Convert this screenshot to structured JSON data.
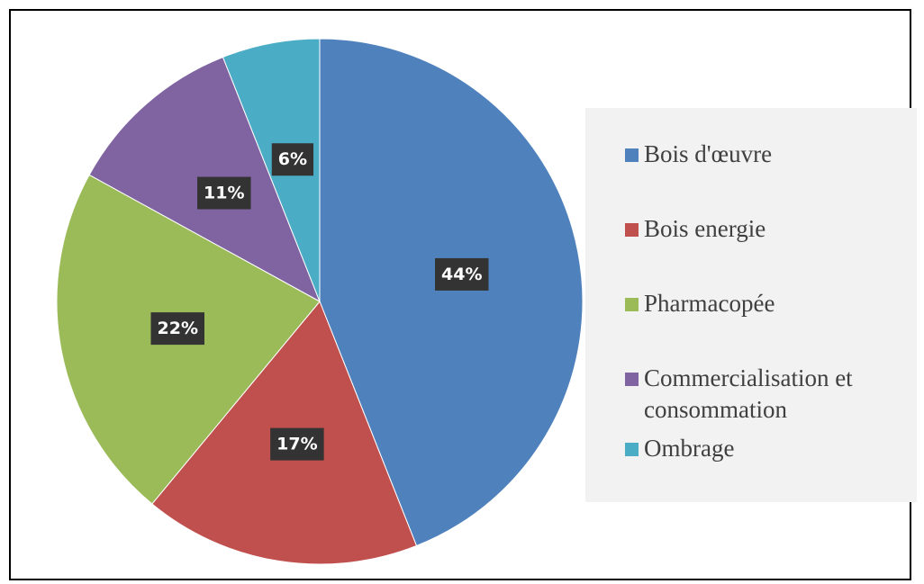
{
  "chart_data": {
    "type": "pie",
    "categories": [
      "Bois d'œuvre",
      "Bois energie",
      "Pharmacopée",
      "Commercialisation et consommation",
      "Ombrage"
    ],
    "values": [
      44,
      17,
      22,
      11,
      6
    ],
    "value_labels": [
      "44%",
      "17%",
      "22%",
      "11%",
      "6%"
    ],
    "colors": [
      "#4f81bd",
      "#c0504d",
      "#9bbb59",
      "#8064a2",
      "#4bacc6"
    ],
    "legend": "right"
  }
}
